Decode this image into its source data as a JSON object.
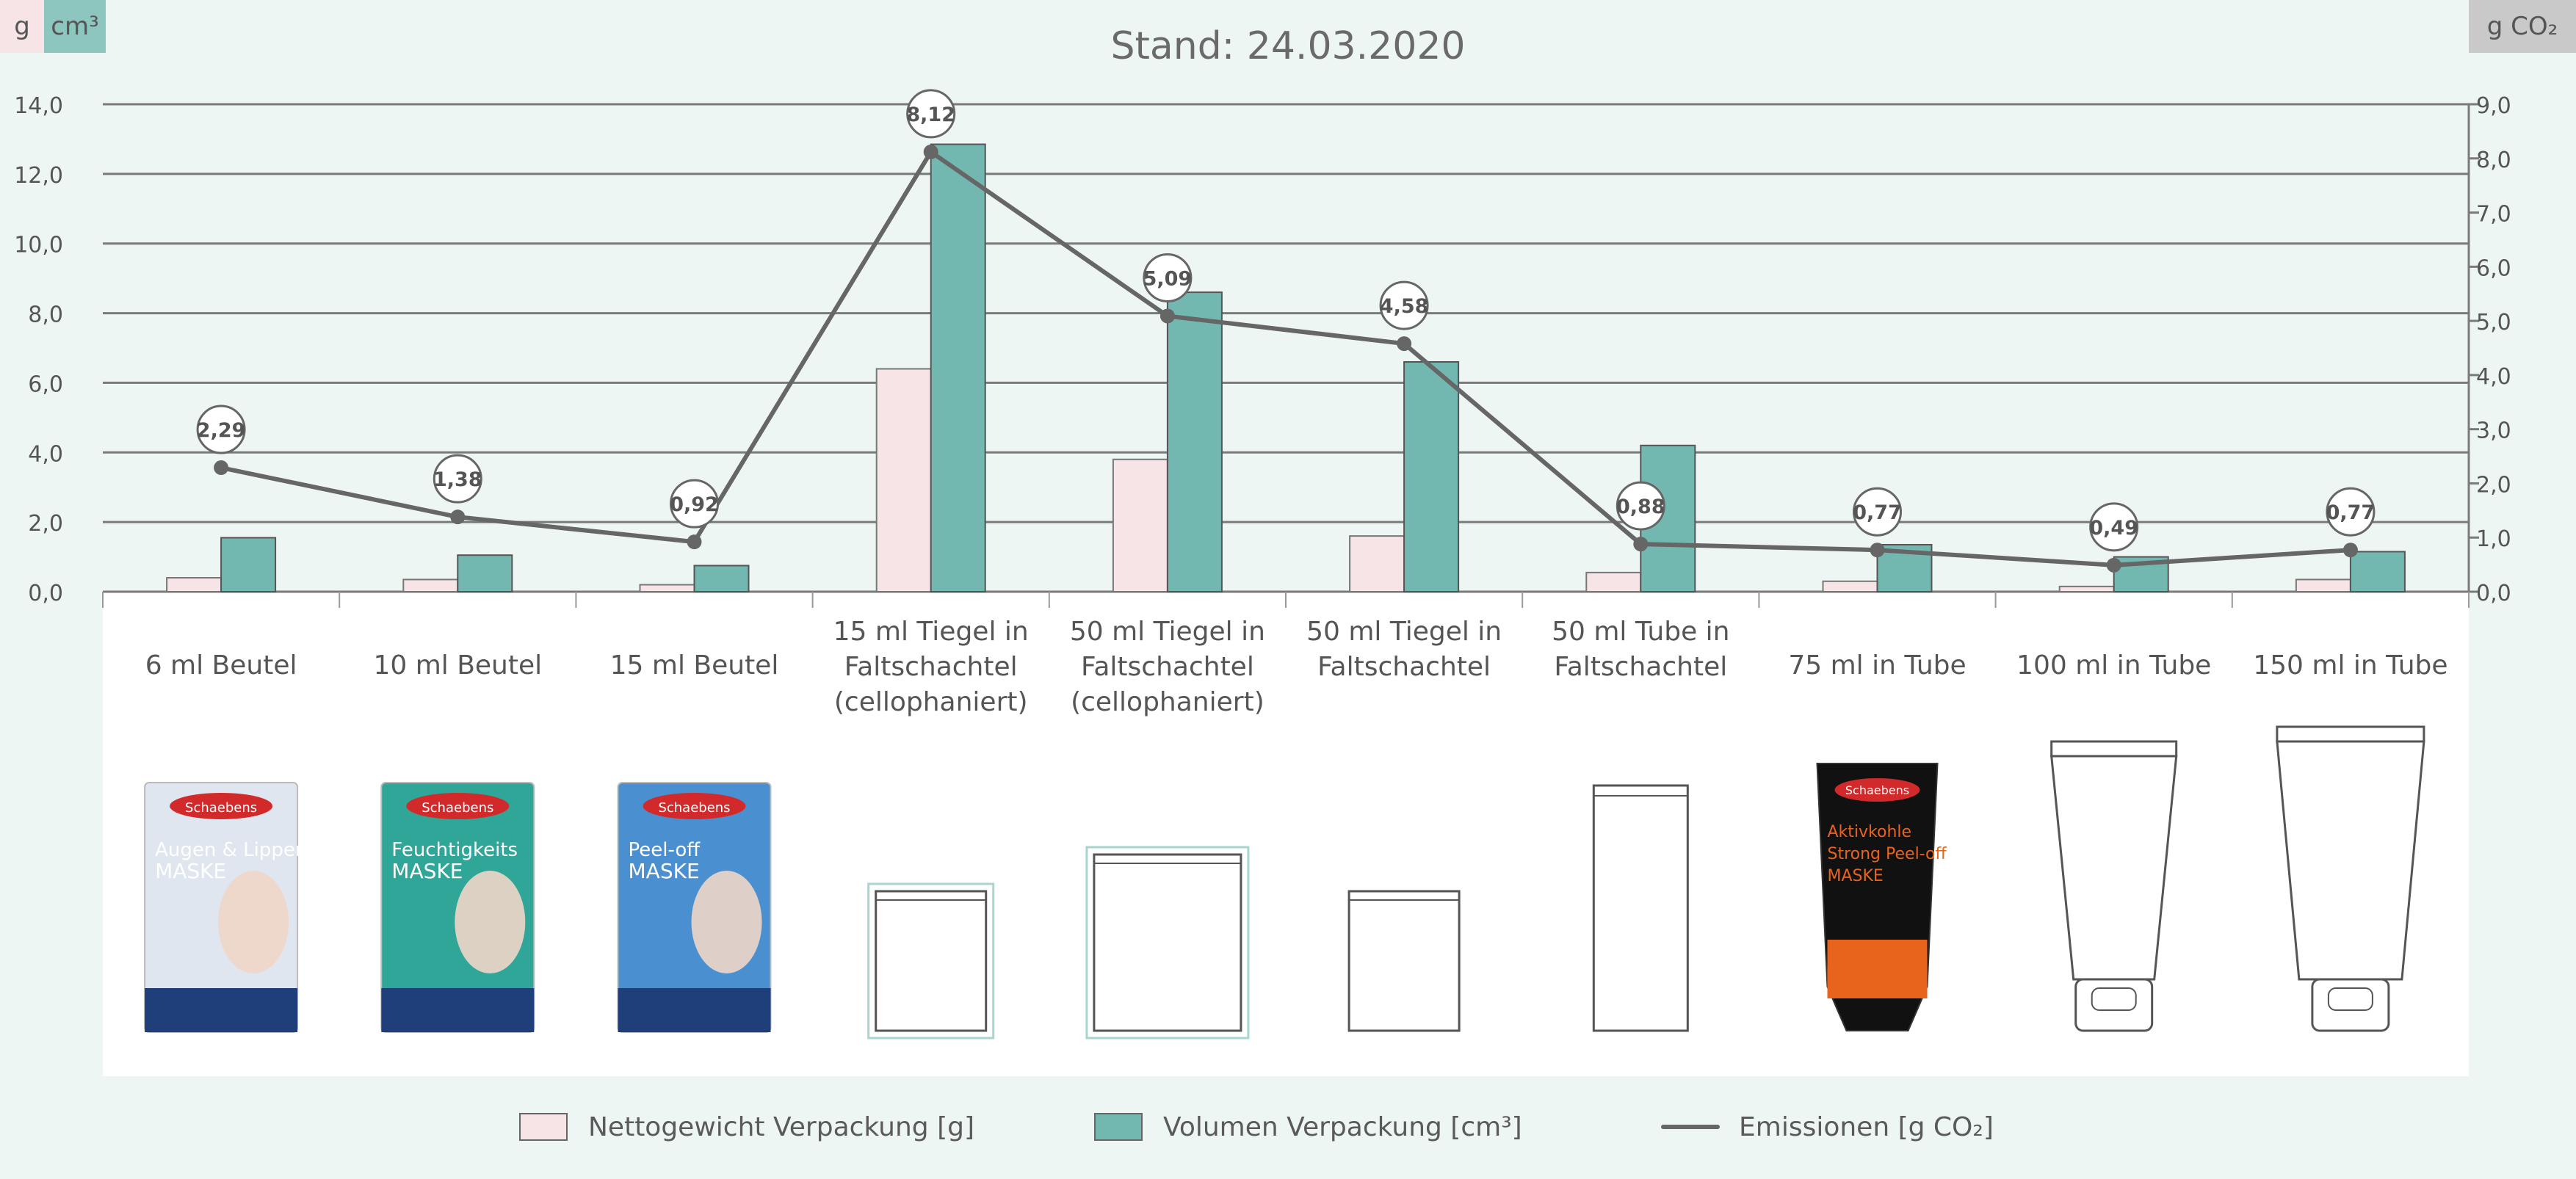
{
  "chart_data": {
    "type": "bar",
    "title": "Stand: 24.03.2020",
    "left_unit_g": "g",
    "left_unit_cm": "cm³",
    "right_unit": "g CO₂",
    "categories": [
      [
        "6 ml Beutel"
      ],
      [
        "10 ml Beutel"
      ],
      [
        "15 ml Beutel"
      ],
      [
        "15 ml Tiegel in",
        "Faltschachtel",
        "(cellophaniert)"
      ],
      [
        "50 ml Tiegel in",
        "Faltschachtel",
        "(cellophaniert)"
      ],
      [
        "50 ml Tiegel in",
        "Faltschachtel"
      ],
      [
        "50 ml Tube in",
        "Faltschachtel"
      ],
      [
        "75 ml in Tube"
      ],
      [
        "100 ml in Tube"
      ],
      [
        "150 ml in Tube"
      ]
    ],
    "series": [
      {
        "name": "Nettogewicht Verpackung [g]",
        "axis": "left",
        "color": "#f7e4e6",
        "values": [
          0.4,
          0.35,
          0.2,
          6.4,
          3.8,
          1.6,
          0.55,
          0.3,
          0.15,
          0.35
        ]
      },
      {
        "name": "Volumen Verpackung  [cm³]",
        "axis": "left",
        "color": "#73b8b0",
        "values": [
          1.55,
          1.05,
          0.75,
          12.85,
          8.6,
          6.6,
          4.2,
          1.35,
          1.0,
          1.15
        ]
      },
      {
        "name": "Emissionen  [g CO₂]",
        "axis": "right",
        "color": "#666666",
        "type": "line",
        "values": [
          2.29,
          1.38,
          0.92,
          8.12,
          5.09,
          4.58,
          0.88,
          0.77,
          0.49,
          0.77
        ],
        "labels": [
          "2,29",
          "1,38",
          "0,92",
          "8,12",
          "5,09",
          "4,58",
          "0,88",
          "0,77",
          "0,49",
          "0,77"
        ]
      }
    ],
    "y_left": {
      "ylim": [
        0,
        14
      ],
      "ticks": [
        "0,0",
        "2,0",
        "4,0",
        "6,0",
        "8,0",
        "10,0",
        "12,0",
        "14,0"
      ]
    },
    "y_right": {
      "ylim": [
        0,
        9
      ],
      "ticks": [
        "0,0",
        "1,0",
        "2,0",
        "3,0",
        "4,0",
        "5,0",
        "6,0",
        "7,0",
        "8,0",
        "9,0"
      ]
    },
    "grid": true,
    "legend_position": "bottom"
  },
  "products": [
    {
      "type": "sachet",
      "brand": "Schaebens",
      "name_line1": "Augen & Lippen",
      "name_line2": "MASKE",
      "color": "#dfe6f0"
    },
    {
      "type": "sachet",
      "brand": "Schaebens",
      "name_line1": "Feuchtigkeits",
      "name_line2": "MASKE",
      "color": "#2fa697"
    },
    {
      "type": "sachet",
      "brand": "Schaebens",
      "name_line1": "Peel-off",
      "name_line2": "MASKE",
      "color": "#4a8fd0"
    },
    {
      "type": "box-outline"
    },
    {
      "type": "box-outline"
    },
    {
      "type": "box-outline"
    },
    {
      "type": "tall-box-outline"
    },
    {
      "type": "black-tube",
      "brand": "Schaebens",
      "name_line1": "Aktivkohle",
      "name_line2": "Strong Peel-off",
      "name_line3": "MASKE"
    },
    {
      "type": "tube-outline"
    },
    {
      "type": "tube-outline"
    }
  ]
}
